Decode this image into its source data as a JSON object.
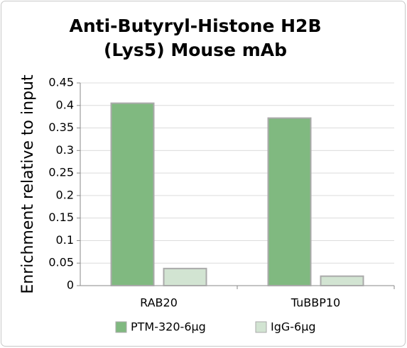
{
  "chart_data": {
    "type": "bar",
    "title": [
      "Anti-Butyryl-Histone H2B",
      "(Lys5) Mouse mAb"
    ],
    "y_label": "Enrichment relative to input",
    "categories": [
      "RAB20",
      "TuBBP10"
    ],
    "series": [
      {
        "name": "PTM-320-6μg",
        "color": "#80b980",
        "values": [
          0.405,
          0.372
        ]
      },
      {
        "name": "IgG-6μg",
        "color": "#d2e4d2",
        "values": [
          0.038,
          0.021
        ]
      }
    ],
    "ylim": [
      0,
      0.45
    ],
    "yticks": [
      0,
      0.05,
      0.1,
      0.15,
      0.2,
      0.25,
      0.3,
      0.35,
      0.4,
      0.45
    ],
    "grid": true,
    "legend": "bottom"
  }
}
